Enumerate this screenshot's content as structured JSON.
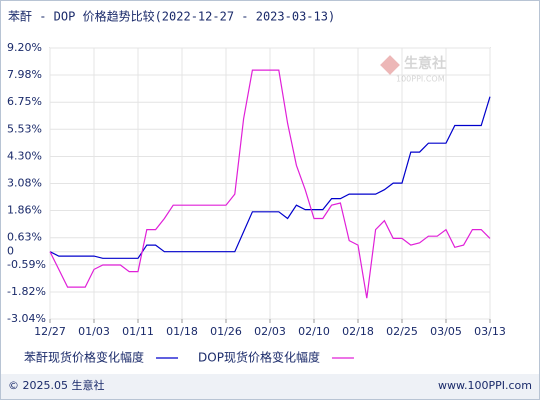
{
  "chart_data": {
    "type": "line",
    "title": "苯酐 - DOP 价格趋势比较(2022-12-27 - 2023-03-13)",
    "categories": [
      "12/27",
      null,
      null,
      null,
      null,
      "01/03",
      null,
      null,
      null,
      null,
      "01/11",
      null,
      null,
      null,
      null,
      "01/18",
      null,
      null,
      null,
      null,
      "01/26",
      null,
      null,
      null,
      null,
      "02/03",
      null,
      null,
      null,
      null,
      "02/10",
      null,
      null,
      null,
      null,
      "02/18",
      null,
      null,
      null,
      null,
      "02/25",
      null,
      null,
      null,
      null,
      "03/05",
      null,
      null,
      null,
      null,
      "03/13"
    ],
    "series": [
      {
        "name": "苯酐现货价格变化幅度",
        "color": "#0000cc",
        "values": [
          0,
          -0.2,
          -0.2,
          -0.2,
          -0.2,
          -0.2,
          -0.3,
          -0.3,
          -0.3,
          -0.3,
          -0.3,
          0.3,
          0.3,
          0,
          0,
          0,
          0,
          0,
          0,
          0,
          0,
          0,
          0.9,
          1.8,
          1.8,
          1.8,
          1.8,
          1.5,
          2.1,
          1.9,
          1.9,
          1.9,
          2.4,
          2.4,
          2.6,
          2.6,
          2.6,
          2.6,
          2.8,
          3.1,
          3.1,
          4.5,
          4.5,
          4.9,
          4.9,
          4.9,
          5.7,
          5.7,
          5.7,
          5.7,
          7.0
        ]
      },
      {
        "name": "DOP现货价格变化幅度",
        "color": "#e020d8",
        "values": [
          0,
          -0.8,
          -1.6,
          -1.6,
          -1.6,
          -0.8,
          -0.6,
          -0.6,
          -0.6,
          -0.9,
          -0.9,
          1.0,
          1.0,
          1.5,
          2.1,
          2.1,
          2.1,
          2.1,
          2.1,
          2.1,
          2.1,
          2.6,
          6.0,
          8.2,
          8.2,
          8.2,
          8.2,
          5.8,
          3.9,
          2.8,
          1.5,
          1.5,
          2.1,
          2.2,
          0.5,
          0.3,
          -2.1,
          1.0,
          1.4,
          0.6,
          0.6,
          0.3,
          0.4,
          0.7,
          0.7,
          1.0,
          0.2,
          0.3,
          1.0,
          1.0,
          0.6
        ]
      }
    ],
    "ylim": [
      -3.04,
      9.2
    ],
    "yticks": [
      {
        "value": 9.2,
        "label": "9.20%"
      },
      {
        "value": 7.98,
        "label": "7.98%"
      },
      {
        "value": 6.75,
        "label": "6.75%"
      },
      {
        "value": 5.53,
        "label": "5.53%"
      },
      {
        "value": 4.3,
        "label": "4.30%"
      },
      {
        "value": 3.08,
        "label": "3.08%"
      },
      {
        "value": 1.86,
        "label": "1.86%"
      },
      {
        "value": 0.63,
        "label": "0.63%"
      },
      0,
      {
        "value": -0.59,
        "label": "-0.59%"
      },
      {
        "value": -1.82,
        "label": "-1.82%"
      },
      {
        "value": -3.04,
        "label": "-3.04%"
      }
    ],
    "grid": true
  },
  "watermark": {
    "name": "生意社",
    "site": "100PPI.COM"
  },
  "footer": {
    "copyright": "© 2025.05 生意社",
    "site": "www.100PPI.com"
  }
}
